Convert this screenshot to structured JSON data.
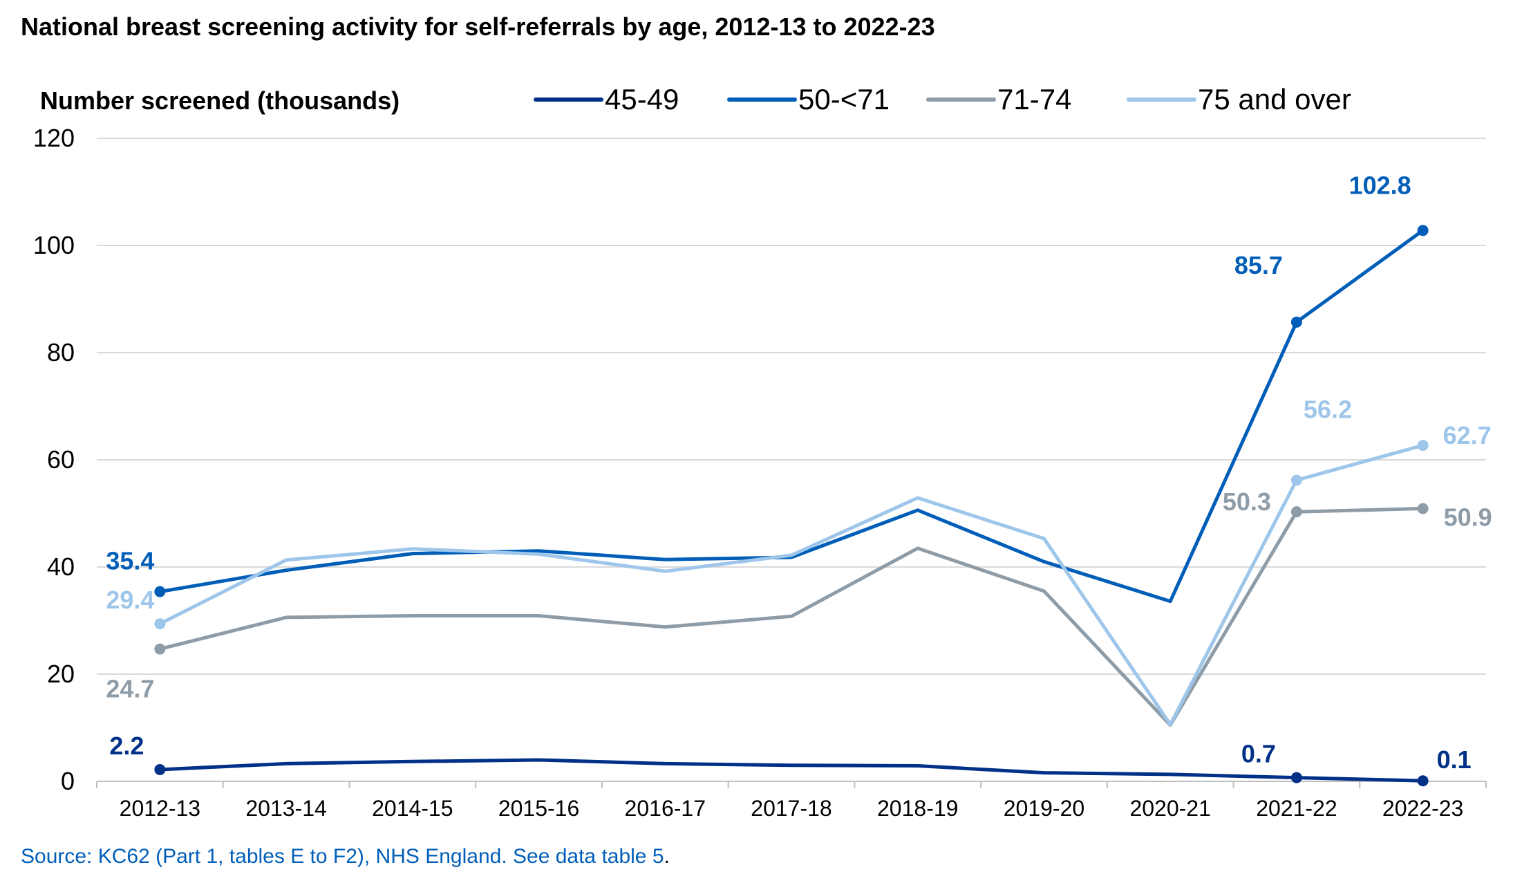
{
  "chart_data": {
    "type": "line",
    "title": "National breast screening activity for self-referrals by age, 2012-13 to 2022-23",
    "ylabel": "Number screened (thousands)",
    "xlabel": "",
    "ylim": [
      0,
      120
    ],
    "yticks": [
      0,
      20,
      40,
      60,
      80,
      100,
      120
    ],
    "grid": true,
    "legend_position": "top",
    "categories": [
      "2012-13",
      "2013-14",
      "2014-15",
      "2015-16",
      "2016-17",
      "2017-18",
      "2018-19",
      "2019-20",
      "2020-21",
      "2021-22",
      "2022-23"
    ],
    "series": [
      {
        "name": "45-49",
        "color": "#003087",
        "values": [
          2.2,
          3.3,
          3.7,
          4.0,
          3.3,
          3.0,
          2.9,
          1.6,
          1.3,
          0.7,
          0.1
        ],
        "labeled_points": [
          {
            "index": 0,
            "text": "2.2"
          },
          {
            "index": 9,
            "text": "0.7"
          },
          {
            "index": 10,
            "text": "0.1"
          }
        ],
        "markers": [
          0,
          9,
          10
        ]
      },
      {
        "name": "50-<71",
        "color": "#005EB8",
        "values": [
          35.4,
          39.4,
          42.5,
          43.0,
          41.4,
          41.8,
          50.6,
          41.0,
          33.6,
          85.7,
          102.8
        ],
        "labeled_points": [
          {
            "index": 0,
            "text": "35.4"
          },
          {
            "index": 9,
            "text": "85.7"
          },
          {
            "index": 10,
            "text": "102.8"
          }
        ],
        "markers": [
          0,
          9,
          10
        ]
      },
      {
        "name": "71-74",
        "color": "#8E9CA8",
        "values": [
          24.7,
          30.6,
          30.9,
          30.9,
          28.8,
          30.8,
          43.5,
          35.5,
          10.5,
          50.3,
          50.9
        ],
        "labeled_points": [
          {
            "index": 0,
            "text": "24.7"
          },
          {
            "index": 9,
            "text": "50.3"
          },
          {
            "index": 10,
            "text": "50.9"
          }
        ],
        "markers": [
          0,
          9,
          10
        ]
      },
      {
        "name": "75 and over",
        "color": "#9DC6EA",
        "values": [
          29.4,
          41.3,
          43.4,
          42.4,
          39.2,
          42.2,
          52.9,
          45.3,
          10.6,
          56.2,
          62.7
        ],
        "labeled_points": [
          {
            "index": 0,
            "text": "29.4"
          },
          {
            "index": 9,
            "text": "56.2"
          },
          {
            "index": 10,
            "text": "62.7"
          }
        ],
        "markers": [
          0,
          9,
          10
        ]
      }
    ]
  },
  "source": {
    "text": "Source: KC62 (Part 1, tables E to F2), NHS England. See data table 5",
    "end": "."
  }
}
